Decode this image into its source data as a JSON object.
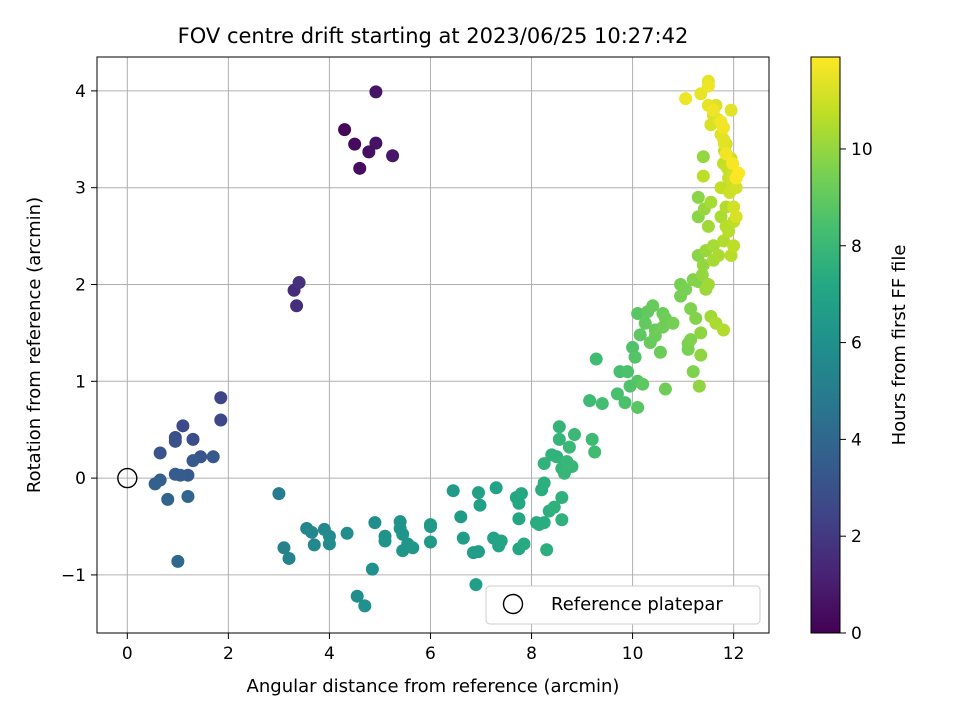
{
  "chart_data": {
    "type": "scatter",
    "title": "FOV centre drift starting at 2023/06/25 10:27:42",
    "xlabel": "Angular distance from reference (arcmin)",
    "ylabel": "Rotation from reference (arcmin)",
    "xlim": [
      -0.6,
      12.7
    ],
    "ylim": [
      -1.6,
      4.35
    ],
    "xticks": [
      0,
      2,
      4,
      6,
      8,
      10,
      12
    ],
    "yticks": [
      -1,
      0,
      1,
      2,
      3,
      4
    ],
    "grid": true,
    "colormap": "viridis",
    "colorbar": {
      "label": "Hours from first FF file",
      "min": 0,
      "max": 11.9,
      "ticks": [
        0,
        2,
        4,
        6,
        8,
        10
      ]
    },
    "legend": {
      "position": "bottom-right",
      "entries": [
        "Reference platepar"
      ]
    },
    "reference_point": {
      "x": 0,
      "y": 0,
      "label": "Reference platepar"
    },
    "series": [
      {
        "points": [
          [
            4.3,
            3.6,
            0.2
          ],
          [
            4.5,
            3.45,
            0.3
          ],
          [
            4.6,
            3.2,
            0.4
          ],
          [
            4.78,
            3.37,
            0.5
          ],
          [
            4.92,
            3.46,
            0.6
          ],
          [
            4.92,
            3.99,
            0.7
          ],
          [
            5.25,
            3.33,
            0.8
          ],
          [
            3.3,
            1.94,
            1.5
          ],
          [
            3.35,
            1.78,
            1.6
          ],
          [
            3.4,
            2.02,
            1.7
          ],
          [
            1.85,
            0.83,
            2.5
          ],
          [
            1.85,
            0.6,
            2.6
          ],
          [
            1.1,
            0.54,
            2.7
          ],
          [
            1.3,
            0.4,
            2.8
          ],
          [
            0.95,
            0.42,
            2.9
          ],
          [
            0.95,
            0.38,
            3.0
          ],
          [
            0.65,
            0.26,
            3.1
          ],
          [
            1.45,
            0.22,
            3.2
          ],
          [
            1.7,
            0.22,
            3.3
          ],
          [
            1.3,
            0.18,
            3.4
          ],
          [
            1.2,
            0.03,
            3.4
          ],
          [
            0.95,
            0.04,
            3.5
          ],
          [
            1.05,
            0.03,
            3.5
          ],
          [
            0.65,
            -0.02,
            3.6
          ],
          [
            0.55,
            -0.06,
            3.7
          ],
          [
            0.8,
            -0.22,
            3.8
          ],
          [
            1.2,
            -0.19,
            3.9
          ],
          [
            1.0,
            -0.86,
            4.0
          ],
          [
            3.0,
            -0.16,
            5.0
          ],
          [
            3.1,
            -0.72,
            5.2
          ],
          [
            3.2,
            -0.83,
            5.3
          ],
          [
            3.55,
            -0.52,
            5.4
          ],
          [
            3.65,
            -0.56,
            5.5
          ],
          [
            3.7,
            -0.69,
            5.6
          ],
          [
            3.9,
            -0.53,
            5.6
          ],
          [
            4.0,
            -0.6,
            5.7
          ],
          [
            4.0,
            -0.68,
            5.7
          ],
          [
            4.35,
            -0.57,
            5.8
          ],
          [
            4.9,
            -0.46,
            5.9
          ],
          [
            4.55,
            -1.22,
            5.9
          ],
          [
            4.7,
            -1.32,
            6.0
          ],
          [
            4.85,
            -0.94,
            6.0
          ],
          [
            5.1,
            -0.6,
            6.0
          ],
          [
            5.1,
            -0.65,
            6.1
          ],
          [
            5.4,
            -0.45,
            6.1
          ],
          [
            5.4,
            -0.52,
            6.1
          ],
          [
            5.45,
            -0.58,
            6.2
          ],
          [
            5.45,
            -0.75,
            6.2
          ],
          [
            5.55,
            -0.68,
            6.2
          ],
          [
            5.65,
            -0.72,
            6.3
          ],
          [
            6.0,
            -0.48,
            6.3
          ],
          [
            6.0,
            -0.5,
            6.4
          ],
          [
            6.0,
            -0.66,
            6.4
          ],
          [
            6.45,
            -0.13,
            6.5
          ],
          [
            6.6,
            -0.4,
            6.5
          ],
          [
            6.65,
            -0.62,
            6.6
          ],
          [
            6.85,
            -0.77,
            6.6
          ],
          [
            6.9,
            -1.1,
            6.7
          ],
          [
            6.95,
            -0.76,
            6.7
          ],
          [
            6.95,
            -0.15,
            6.8
          ],
          [
            6.98,
            -0.28,
            6.8
          ],
          [
            7.25,
            -0.62,
            6.9
          ],
          [
            7.3,
            -0.1,
            6.9
          ],
          [
            7.35,
            -0.7,
            7.0
          ],
          [
            7.4,
            -0.65,
            7.0
          ],
          [
            7.7,
            -0.2,
            7.1
          ],
          [
            7.75,
            -0.73,
            7.1
          ],
          [
            7.75,
            -0.42,
            7.1
          ],
          [
            7.75,
            -0.26,
            7.2
          ],
          [
            7.8,
            -0.16,
            7.2
          ],
          [
            7.85,
            -0.68,
            7.3
          ],
          [
            8.1,
            -0.46,
            7.3
          ],
          [
            8.15,
            -0.48,
            7.4
          ],
          [
            8.2,
            -0.12,
            7.4
          ],
          [
            8.25,
            -0.46,
            7.4
          ],
          [
            8.25,
            -0.05,
            7.5
          ],
          [
            8.3,
            -0.74,
            7.5
          ],
          [
            8.35,
            -0.34,
            7.5
          ],
          [
            8.45,
            -0.3,
            7.6
          ],
          [
            8.6,
            -0.2,
            7.6
          ],
          [
            8.6,
            -0.43,
            7.6
          ],
          [
            8.25,
            0.15,
            7.7
          ],
          [
            8.4,
            0.24,
            7.7
          ],
          [
            8.5,
            0.22,
            7.7
          ],
          [
            8.55,
            0.4,
            7.8
          ],
          [
            8.55,
            0.53,
            7.8
          ],
          [
            8.6,
            0.1,
            7.8
          ],
          [
            8.65,
            0.05,
            7.9
          ],
          [
            8.7,
            0.17,
            7.9
          ],
          [
            8.8,
            0.12,
            7.9
          ],
          [
            8.75,
            0.32,
            8.0
          ],
          [
            8.85,
            0.45,
            8.0
          ],
          [
            9.15,
            0.8,
            8.1
          ],
          [
            9.2,
            0.4,
            8.1
          ],
          [
            9.25,
            0.27,
            8.2
          ],
          [
            9.28,
            1.23,
            8.2
          ],
          [
            9.4,
            0.77,
            8.3
          ],
          [
            9.7,
            0.87,
            8.4
          ],
          [
            9.75,
            1.1,
            8.4
          ],
          [
            9.85,
            0.78,
            8.5
          ],
          [
            9.9,
            1.1,
            8.5
          ],
          [
            9.95,
            0.95,
            8.6
          ],
          [
            10.0,
            1.35,
            8.6
          ],
          [
            10.05,
            1.25,
            8.7
          ],
          [
            10.1,
            1.0,
            8.7
          ],
          [
            10.1,
            0.73,
            8.8
          ],
          [
            10.1,
            1.7,
            8.8
          ],
          [
            10.15,
            1.48,
            8.9
          ],
          [
            10.2,
            0.97,
            8.9
          ],
          [
            10.3,
            1.72,
            9.0
          ],
          [
            10.25,
            1.6,
            9.0
          ],
          [
            10.35,
            1.4,
            9.1
          ],
          [
            10.4,
            1.78,
            9.1
          ],
          [
            10.45,
            1.53,
            9.1
          ],
          [
            10.45,
            1.47,
            9.2
          ],
          [
            10.55,
            1.3,
            9.2
          ],
          [
            10.6,
            1.7,
            9.2
          ],
          [
            10.6,
            1.56,
            9.3
          ],
          [
            10.65,
            0.92,
            9.3
          ],
          [
            10.65,
            1.65,
            9.3
          ],
          [
            10.8,
            1.6,
            9.4
          ],
          [
            10.95,
            1.88,
            9.4
          ],
          [
            10.95,
            2.0,
            9.4
          ],
          [
            11.05,
            1.95,
            9.5
          ],
          [
            11.1,
            1.33,
            9.5
          ],
          [
            11.1,
            1.39,
            9.5
          ],
          [
            11.15,
            1.43,
            9.6
          ],
          [
            11.15,
            1.75,
            9.6
          ],
          [
            11.2,
            1.1,
            9.6
          ],
          [
            11.2,
            2.05,
            9.7
          ],
          [
            11.25,
            1.65,
            9.7
          ],
          [
            11.3,
            2.03,
            9.7
          ],
          [
            11.3,
            2.7,
            9.8
          ],
          [
            11.3,
            2.9,
            9.8
          ],
          [
            11.3,
            2.3,
            9.8
          ],
          [
            11.32,
            0.95,
            9.9
          ],
          [
            11.35,
            1.5,
            9.9
          ],
          [
            11.35,
            1.27,
            9.9
          ],
          [
            11.38,
            2.1,
            10.0
          ],
          [
            11.4,
            2.2,
            10.0
          ],
          [
            11.4,
            3.32,
            10.0
          ],
          [
            11.42,
            2.78,
            10.1
          ],
          [
            11.45,
            1.95,
            10.1
          ],
          [
            11.45,
            2.35,
            10.1
          ],
          [
            11.5,
            2.6,
            10.2
          ],
          [
            11.5,
            2.0,
            10.2
          ],
          [
            11.55,
            1.67,
            10.2
          ],
          [
            11.55,
            2.85,
            10.3
          ],
          [
            11.6,
            2.4,
            10.3
          ],
          [
            11.6,
            2.25,
            10.3
          ],
          [
            11.65,
            1.6,
            10.4
          ],
          [
            11.7,
            2.3,
            10.4
          ],
          [
            11.75,
            2.7,
            10.4
          ],
          [
            11.8,
            2.45,
            10.5
          ],
          [
            11.8,
            1.53,
            10.5
          ],
          [
            11.85,
            2.8,
            10.5
          ],
          [
            11.85,
            2.6,
            10.6
          ],
          [
            11.9,
            2.55,
            10.6
          ],
          [
            11.95,
            2.3,
            10.6
          ],
          [
            12.0,
            2.4,
            10.7
          ],
          [
            12.0,
            2.65,
            10.7
          ],
          [
            11.4,
            3.12,
            10.7
          ],
          [
            11.75,
            3.0,
            10.8
          ],
          [
            11.8,
            3.25,
            10.8
          ],
          [
            11.82,
            3.38,
            10.8
          ],
          [
            11.85,
            3.45,
            10.9
          ],
          [
            11.88,
            3.2,
            10.9
          ],
          [
            11.9,
            3.1,
            10.9
          ],
          [
            11.92,
            2.95,
            11.0
          ],
          [
            11.95,
            3.3,
            11.0
          ],
          [
            11.98,
            3.05,
            11.0
          ],
          [
            12.0,
            3.15,
            11.1
          ],
          [
            12.05,
            3.0,
            11.1
          ],
          [
            12.0,
            2.8,
            11.1
          ],
          [
            12.05,
            2.7,
            11.2
          ],
          [
            11.55,
            3.65,
            11.2
          ],
          [
            11.6,
            3.75,
            11.2
          ],
          [
            11.65,
            3.85,
            11.3
          ],
          [
            11.7,
            3.7,
            11.3
          ],
          [
            11.75,
            3.55,
            11.3
          ],
          [
            11.8,
            3.5,
            11.4
          ],
          [
            11.82,
            3.45,
            11.4
          ],
          [
            11.95,
            3.8,
            11.4
          ],
          [
            11.5,
            3.85,
            11.5
          ],
          [
            11.5,
            4.1,
            11.5
          ],
          [
            11.35,
            3.97,
            11.5
          ],
          [
            11.05,
            3.92,
            11.6
          ],
          [
            11.6,
            3.8,
            11.6
          ],
          [
            11.5,
            4.05,
            11.6
          ],
          [
            11.8,
            3.62,
            11.7
          ],
          [
            11.85,
            3.35,
            11.7
          ],
          [
            11.75,
            3.68,
            11.7
          ],
          [
            11.98,
            3.25,
            11.8
          ],
          [
            12.05,
            3.1,
            11.8
          ],
          [
            12.1,
            3.15,
            11.9
          ]
        ]
      }
    ]
  }
}
